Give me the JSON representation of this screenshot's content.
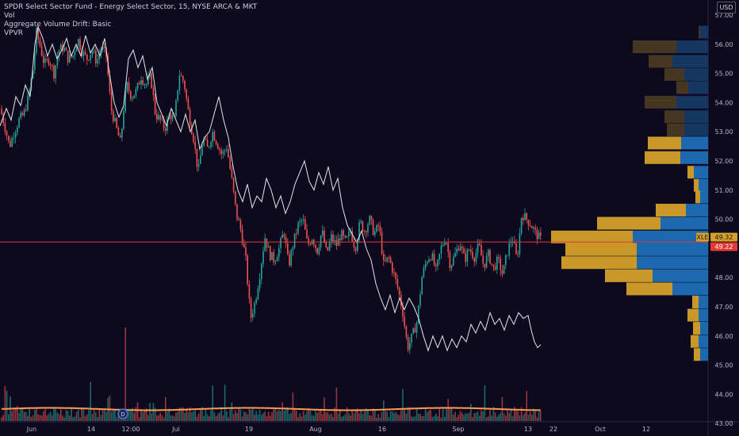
{
  "legend": {
    "title": "SPDR Select Sector Fund - Energy Select Sector, 15, NYSE ARCA & MKT",
    "line2": "Vol",
    "line3": "Aggregate Volume Drift: Basic",
    "line4": "VPVR"
  },
  "currency": "USD",
  "symbol_tag": "XLE",
  "colors": {
    "background": "#0d0a1f",
    "up": "#26a69a",
    "down": "#ef5350",
    "drift_line": "#e6e6e6",
    "price_line": "#e53935",
    "vol_ma": "#ff9a52",
    "vp_up": "#1e6fb8",
    "vp_down": "#d4a02a",
    "vp_up_dim": "#163a66",
    "vp_down_dim": "#4a3a24"
  },
  "chart_data": {
    "type": "candlestick",
    "y_axis": {
      "labels": [
        "57.00",
        "56.00",
        "55.00",
        "54.00",
        "53.00",
        "52.00",
        "51.00",
        "50.00",
        "49.00",
        "48.00",
        "47.00",
        "46.00",
        "45.00",
        "44.00",
        "43.00"
      ],
      "range": [
        43.0,
        57.1
      ]
    },
    "x_axis": {
      "labels": [
        "Jun",
        "14",
        "12:00",
        "Jul",
        "19",
        "Aug",
        "16",
        "Sep",
        "13",
        "22",
        "Oct",
        "12"
      ]
    },
    "last_price": "49.32",
    "current_price": "49.22",
    "price_trend": [
      [
        0,
        53.8
      ],
      [
        6,
        53.2
      ],
      [
        12,
        52.5
      ],
      [
        18,
        53.0
      ],
      [
        24,
        53.4
      ],
      [
        30,
        53.6
      ],
      [
        36,
        54.2
      ],
      [
        42,
        55.2
      ],
      [
        46,
        56.4
      ],
      [
        50,
        56.0
      ],
      [
        56,
        55.3
      ],
      [
        62,
        55.5
      ],
      [
        68,
        55.0
      ],
      [
        74,
        55.8
      ],
      [
        80,
        55.9
      ],
      [
        86,
        55.5
      ],
      [
        92,
        55.6
      ],
      [
        98,
        56.2
      ],
      [
        104,
        55.7
      ],
      [
        110,
        55.5
      ],
      [
        116,
        55.8
      ],
      [
        122,
        55.4
      ],
      [
        128,
        55.9
      ],
      [
        134,
        55.6
      ],
      [
        140,
        53.8
      ],
      [
        146,
        53.2
      ],
      [
        152,
        52.6
      ],
      [
        156,
        53.8
      ],
      [
        160,
        54.6
      ],
      [
        166,
        54.2
      ],
      [
        172,
        54.4
      ],
      [
        178,
        54.9
      ],
      [
        184,
        54.6
      ],
      [
        190,
        54.9
      ],
      [
        196,
        53.6
      ],
      [
        202,
        53.4
      ],
      [
        208,
        53.1
      ],
      [
        214,
        53.6
      ],
      [
        220,
        53.4
      ],
      [
        226,
        55.0
      ],
      [
        232,
        54.7
      ],
      [
        238,
        53.6
      ],
      [
        244,
        52.8
      ],
      [
        250,
        51.6
      ],
      [
        256,
        52.8
      ],
      [
        262,
        52.4
      ],
      [
        268,
        53.0
      ],
      [
        274,
        52.6
      ],
      [
        280,
        52.2
      ],
      [
        286,
        52.5
      ],
      [
        292,
        51.4
      ],
      [
        298,
        50.2
      ],
      [
        304,
        49.6
      ],
      [
        310,
        48.6
      ],
      [
        316,
        46.6
      ],
      [
        322,
        47.2
      ],
      [
        328,
        48.2
      ],
      [
        334,
        49.4
      ],
      [
        340,
        48.8
      ],
      [
        346,
        48.6
      ],
      [
        352,
        49.0
      ],
      [
        358,
        49.6
      ],
      [
        364,
        48.4
      ],
      [
        370,
        49.2
      ],
      [
        376,
        49.8
      ],
      [
        382,
        50.0
      ],
      [
        388,
        49.1
      ],
      [
        394,
        49.4
      ],
      [
        400,
        48.9
      ],
      [
        406,
        49.6
      ],
      [
        412,
        48.8
      ],
      [
        418,
        49.4
      ],
      [
        424,
        49.1
      ],
      [
        430,
        49.5
      ],
      [
        436,
        49.2
      ],
      [
        442,
        49.6
      ],
      [
        448,
        49.0
      ],
      [
        454,
        49.9
      ],
      [
        460,
        49.6
      ],
      [
        466,
        50.0
      ],
      [
        472,
        49.5
      ],
      [
        478,
        49.8
      ],
      [
        484,
        48.4
      ],
      [
        490,
        48.7
      ],
      [
        496,
        48.2
      ],
      [
        502,
        47.6
      ],
      [
        508,
        46.8
      ],
      [
        514,
        45.6
      ],
      [
        520,
        46.0
      ],
      [
        526,
        46.5
      ],
      [
        532,
        48.0
      ],
      [
        538,
        48.6
      ],
      [
        544,
        48.8
      ],
      [
        550,
        48.2
      ],
      [
        556,
        49.0
      ],
      [
        562,
        49.4
      ],
      [
        568,
        48.4
      ],
      [
        574,
        48.8
      ],
      [
        580,
        49.2
      ],
      [
        586,
        48.6
      ],
      [
        592,
        49.0
      ],
      [
        598,
        48.7
      ],
      [
        604,
        49.1
      ],
      [
        610,
        48.4
      ],
      [
        616,
        48.8
      ],
      [
        622,
        48.3
      ],
      [
        628,
        48.6
      ],
      [
        634,
        48.1
      ],
      [
        640,
        48.9
      ],
      [
        646,
        49.4
      ],
      [
        652,
        48.6
      ],
      [
        658,
        50.2
      ],
      [
        664,
        50.0
      ],
      [
        670,
        49.8
      ],
      [
        676,
        49.5
      ],
      [
        682,
        49.3
      ]
    ],
    "drift": [
      [
        0,
        53.2
      ],
      [
        8,
        53.8
      ],
      [
        14,
        53.4
      ],
      [
        20,
        54.2
      ],
      [
        26,
        53.9
      ],
      [
        32,
        54.6
      ],
      [
        38,
        54.2
      ],
      [
        44,
        56.0
      ],
      [
        48,
        56.6
      ],
      [
        54,
        56.2
      ],
      [
        60,
        55.6
      ],
      [
        66,
        56.0
      ],
      [
        72,
        55.5
      ],
      [
        78,
        55.8
      ],
      [
        84,
        56.2
      ],
      [
        90,
        55.6
      ],
      [
        96,
        56.0
      ],
      [
        102,
        55.6
      ],
      [
        108,
        56.3
      ],
      [
        114,
        55.7
      ],
      [
        120,
        56.0
      ],
      [
        126,
        55.6
      ],
      [
        132,
        56.2
      ],
      [
        138,
        55.0
      ],
      [
        144,
        54.0
      ],
      [
        150,
        53.5
      ],
      [
        156,
        53.9
      ],
      [
        162,
        55.5
      ],
      [
        168,
        55.8
      ],
      [
        174,
        55.2
      ],
      [
        180,
        55.6
      ],
      [
        186,
        54.8
      ],
      [
        192,
        55.2
      ],
      [
        198,
        54.0
      ],
      [
        204,
        53.6
      ],
      [
        210,
        53.2
      ],
      [
        216,
        53.8
      ],
      [
        222,
        53.4
      ],
      [
        228,
        53.0
      ],
      [
        234,
        53.6
      ],
      [
        240,
        53.0
      ],
      [
        246,
        53.4
      ],
      [
        252,
        52.4
      ],
      [
        258,
        52.8
      ],
      [
        264,
        53.0
      ],
      [
        270,
        53.6
      ],
      [
        276,
        54.2
      ],
      [
        282,
        53.4
      ],
      [
        288,
        52.8
      ],
      [
        294,
        51.8
      ],
      [
        300,
        51.0
      ],
      [
        306,
        50.6
      ],
      [
        312,
        51.2
      ],
      [
        318,
        50.4
      ],
      [
        324,
        50.8
      ],
      [
        330,
        50.6
      ],
      [
        336,
        51.4
      ],
      [
        342,
        51.0
      ],
      [
        348,
        50.4
      ],
      [
        354,
        50.8
      ],
      [
        360,
        50.2
      ],
      [
        366,
        50.6
      ],
      [
        372,
        51.2
      ],
      [
        378,
        51.6
      ],
      [
        384,
        52.0
      ],
      [
        390,
        51.3
      ],
      [
        396,
        51.0
      ],
      [
        402,
        51.6
      ],
      [
        408,
        51.2
      ],
      [
        414,
        51.8
      ],
      [
        420,
        51.0
      ],
      [
        426,
        51.4
      ],
      [
        432,
        50.4
      ],
      [
        438,
        49.8
      ],
      [
        444,
        49.5
      ],
      [
        450,
        49.2
      ],
      [
        456,
        49.6
      ],
      [
        462,
        49.0
      ],
      [
        468,
        48.6
      ],
      [
        474,
        47.8
      ],
      [
        480,
        47.3
      ],
      [
        486,
        46.9
      ],
      [
        492,
        47.4
      ],
      [
        498,
        46.8
      ],
      [
        504,
        47.3
      ],
      [
        510,
        46.9
      ],
      [
        516,
        47.3
      ],
      [
        522,
        47.0
      ],
      [
        528,
        46.6
      ],
      [
        534,
        46.0
      ],
      [
        540,
        45.5
      ],
      [
        546,
        46.0
      ],
      [
        552,
        45.6
      ],
      [
        558,
        46.0
      ],
      [
        564,
        45.5
      ],
      [
        570,
        45.9
      ],
      [
        576,
        45.6
      ],
      [
        582,
        46.0
      ],
      [
        588,
        45.8
      ],
      [
        594,
        46.4
      ],
      [
        600,
        46.1
      ],
      [
        606,
        46.5
      ],
      [
        612,
        46.2
      ],
      [
        618,
        46.8
      ],
      [
        624,
        46.4
      ],
      [
        630,
        46.6
      ],
      [
        636,
        46.2
      ],
      [
        642,
        46.7
      ],
      [
        648,
        46.4
      ],
      [
        654,
        46.8
      ],
      [
        660,
        46.6
      ],
      [
        666,
        46.7
      ],
      [
        670,
        46.2
      ],
      [
        674,
        45.8
      ],
      [
        678,
        45.6
      ],
      [
        682,
        45.7
      ]
    ],
    "volume_profile": [
      {
        "price": 56.4,
        "up": 10,
        "down": 2,
        "dim": true
      },
      {
        "price": 55.9,
        "up": 40,
        "down": 55,
        "dim": true
      },
      {
        "price": 55.4,
        "up": 45,
        "down": 30,
        "dim": true
      },
      {
        "price": 54.95,
        "up": 30,
        "down": 25,
        "dim": true
      },
      {
        "price": 54.5,
        "up": 25,
        "down": 15,
        "dim": true
      },
      {
        "price": 54.0,
        "up": 40,
        "down": 40,
        "dim": true
      },
      {
        "price": 53.5,
        "up": 30,
        "down": 25,
        "dim": true
      },
      {
        "price": 53.05,
        "up": 30,
        "down": 22,
        "dim": true
      },
      {
        "price": 52.6,
        "up": 34,
        "down": 42,
        "dim": false
      },
      {
        "price": 52.1,
        "up": 35,
        "down": 45,
        "dim": false
      },
      {
        "price": 51.6,
        "up": 18,
        "down": 8,
        "dim": false
      },
      {
        "price": 51.15,
        "up": 12,
        "down": 6,
        "dim": false
      },
      {
        "price": 50.75,
        "up": 10,
        "down": 6,
        "dim": false
      },
      {
        "price": 50.3,
        "up": 28,
        "down": 38,
        "dim": false
      },
      {
        "price": 49.85,
        "up": 60,
        "down": 80,
        "dim": false
      },
      {
        "price": 49.38,
        "up": 95,
        "down": 103,
        "dim": false
      },
      {
        "price": 48.95,
        "up": 90,
        "down": 90,
        "dim": false
      },
      {
        "price": 48.5,
        "up": 90,
        "down": 95,
        "dim": false
      },
      {
        "price": 48.05,
        "up": 70,
        "down": 60,
        "dim": false
      },
      {
        "price": 47.6,
        "up": 45,
        "down": 58,
        "dim": false
      },
      {
        "price": 47.15,
        "up": 12,
        "down": 8,
        "dim": false
      },
      {
        "price": 46.7,
        "up": 12,
        "down": 14,
        "dim": false
      },
      {
        "price": 46.25,
        "up": 10,
        "down": 9,
        "dim": false
      },
      {
        "price": 45.8,
        "up": 12,
        "down": 10,
        "dim": false
      },
      {
        "price": 45.35,
        "up": 10,
        "down": 8,
        "dim": false
      }
    ]
  }
}
